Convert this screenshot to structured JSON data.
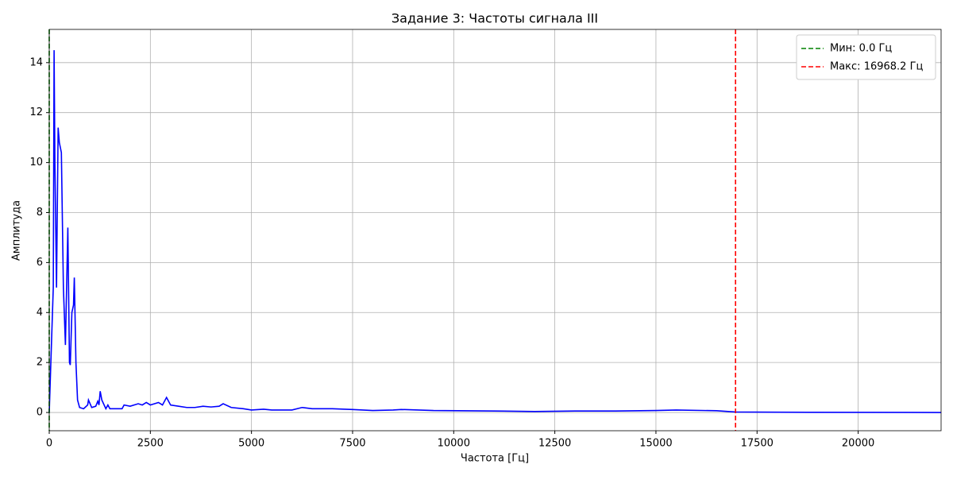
{
  "chart_data": {
    "type": "line",
    "title": "Задание 3: Частоты сигнала III",
    "x_label": "Частота [Гц]",
    "y_label": "Амплитуда",
    "x": [
      0,
      50,
      100,
      120,
      140,
      180,
      220,
      250,
      300,
      350,
      400,
      460,
      500,
      520,
      560,
      600,
      620,
      660,
      700,
      750,
      850,
      950,
      970,
      1050,
      1150,
      1200,
      1230,
      1260,
      1300,
      1400,
      1450,
      1500,
      1700,
      1800,
      1850,
      2000,
      2200,
      2300,
      2400,
      2500,
      2700,
      2800,
      2900,
      3000,
      3200,
      3400,
      3600,
      3800,
      4000,
      4200,
      4300,
      4500,
      4800,
      5000,
      5300,
      5500,
      6000,
      6250,
      6500,
      7000,
      7500,
      8000,
      8500,
      8700,
      9500,
      11000,
      12000,
      13000,
      14000,
      15000,
      15500,
      16500,
      16968.2,
      18000,
      22050
    ],
    "series": [
      {
        "name": "Амплитуда",
        "color": "#0000ff",
        "values": [
          0,
          2.5,
          5,
          14.5,
          10,
          5,
          11.4,
          10.8,
          10.4,
          5,
          2.7,
          7.4,
          2,
          1.9,
          4,
          4.3,
          5.4,
          2,
          0.5,
          0.2,
          0.15,
          0.3,
          0.5,
          0.2,
          0.25,
          0.45,
          0.3,
          0.85,
          0.5,
          0.15,
          0.3,
          0.15,
          0.15,
          0.15,
          0.3,
          0.25,
          0.35,
          0.3,
          0.4,
          0.3,
          0.4,
          0.3,
          0.6,
          0.3,
          0.25,
          0.2,
          0.2,
          0.25,
          0.22,
          0.25,
          0.35,
          0.2,
          0.15,
          0.1,
          0.13,
          0.1,
          0.1,
          0.2,
          0.15,
          0.15,
          0.12,
          0.08,
          0.1,
          0.12,
          0.08,
          0.06,
          0.04,
          0.06,
          0.06,
          0.08,
          0.1,
          0.07,
          0.02,
          0.01,
          0
        ]
      }
    ],
    "vlines": [
      {
        "name": "Мин: 0.0 Гц",
        "color": "#008000",
        "x": 0
      },
      {
        "name": "Макс: 16968.2 Гц",
        "color": "#ff0000",
        "x": 16968.2
      }
    ],
    "xlim": [
      0,
      22050
    ],
    "xticks": [
      0,
      2500,
      5000,
      7500,
      10000,
      12500,
      15000,
      17500,
      20000
    ],
    "ylim": [
      -0.73,
      15.33
    ],
    "yticks": [
      0,
      2,
      4,
      6,
      8,
      10,
      12,
      14
    ],
    "grid": true,
    "legend": "upper right"
  }
}
